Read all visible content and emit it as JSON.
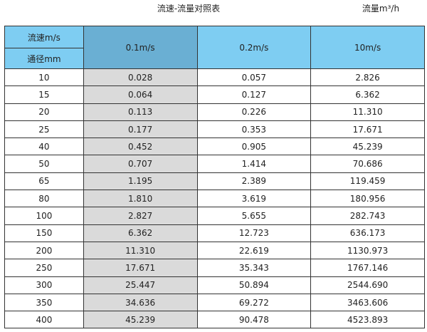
{
  "title": "流速-流量对照表",
  "unit": "流量m³/h",
  "header": {
    "speed_label": "流速m/s",
    "diameter_label": "通径mm",
    "columns": [
      "0.1m/s",
      "0.2m/s",
      "10m/s"
    ]
  },
  "rows": [
    [
      "10",
      "0.028",
      "0.057",
      "2.826"
    ],
    [
      "15",
      "0.064",
      "0.127",
      "6.362"
    ],
    [
      "20",
      "0.113",
      "0.226",
      "11.310"
    ],
    [
      "25",
      "0.177",
      "0.353",
      "17.671"
    ],
    [
      "40",
      "0.452",
      "0.905",
      "45.239"
    ],
    [
      "50",
      "0.707",
      "1.414",
      "70.686"
    ],
    [
      "65",
      "1.195",
      "2.389",
      "119.459"
    ],
    [
      "80",
      "1.810",
      "3.619",
      "180.956"
    ],
    [
      "100",
      "2.827",
      "5.655",
      "282.743"
    ],
    [
      "150",
      "6.362",
      "12.723",
      "636.173"
    ],
    [
      "200",
      "11.310",
      "22.619",
      "1130.973"
    ],
    [
      "250",
      "17.671",
      "35.343",
      "1767.146"
    ],
    [
      "300",
      "25.447",
      "50.894",
      "2544.690"
    ],
    [
      "350",
      "34.636",
      "69.272",
      "3463.606"
    ],
    [
      "400",
      "45.239",
      "90.478",
      "4523.893"
    ]
  ],
  "colors": {
    "header": "#7ecdf2",
    "highlight_header": "#6aafd3",
    "highlight_column": "#dadada"
  }
}
